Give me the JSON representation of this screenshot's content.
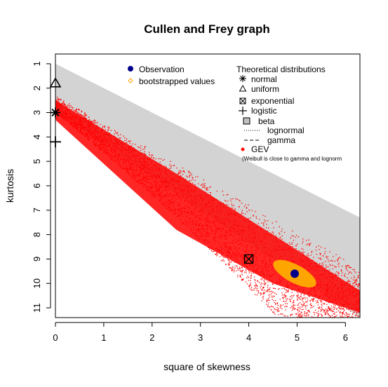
{
  "chart_data": {
    "type": "scatter",
    "title": "Cullen and Frey graph",
    "xlabel": "square of skewness",
    "ylabel": "kurtosis",
    "xlim": [
      0,
      6.3
    ],
    "ylim": [
      11.4,
      0.6
    ],
    "y_axis_reversed": true,
    "x_ticks": [
      "0",
      "1",
      "2",
      "3",
      "4",
      "5",
      "6"
    ],
    "y_ticks": [
      "1",
      "2",
      "3",
      "4",
      "5",
      "6",
      "7",
      "8",
      "9",
      "10",
      "11"
    ],
    "observation": {
      "x": 4.95,
      "y": 9.6
    },
    "theoretical_points": [
      {
        "name": "normal",
        "x": 0,
        "y": 3
      },
      {
        "name": "uniform",
        "x": 0,
        "y": 1.8
      },
      {
        "name": "exponential",
        "x": 4,
        "y": 9
      },
      {
        "name": "logistic",
        "x": 0,
        "y": 4.2
      }
    ],
    "beta_region": {
      "upper": [
        [
          0,
          1
        ],
        [
          6.3,
          7.3
        ]
      ],
      "lower": [
        [
          0,
          3
        ],
        [
          6.3,
          11.4
        ]
      ]
    },
    "legend_left": {
      "position": "top-center",
      "items": [
        {
          "label": "Observation",
          "symbol": "filled-circle",
          "color": "#00008b"
        },
        {
          "label": "bootstrapped values",
          "symbol": "open-diamond",
          "color": "#ffa500"
        }
      ]
    },
    "legend_right": {
      "position": "top-right",
      "title": "Theoretical distributions",
      "items": [
        {
          "label": "normal",
          "symbol": "asterisk"
        },
        {
          "label": "uniform",
          "symbol": "open-triangle"
        },
        {
          "label": "exponential",
          "symbol": "boxed-x"
        },
        {
          "label": "logistic",
          "symbol": "plus"
        },
        {
          "label": "beta",
          "symbol": "grey-box"
        },
        {
          "label": "lognormal",
          "symbol": "dotted-line"
        },
        {
          "label": "gamma",
          "symbol": "dashed-line"
        },
        {
          "label": "GEV",
          "symbol": "red-diamond"
        }
      ],
      "note": "(Weibull is close to gamma and lognorm"
    },
    "colors": {
      "beta_region": "#d3d3d3",
      "bootstrap": "#ffa500",
      "gev": "#ff0000",
      "observation": "#00008b"
    }
  }
}
